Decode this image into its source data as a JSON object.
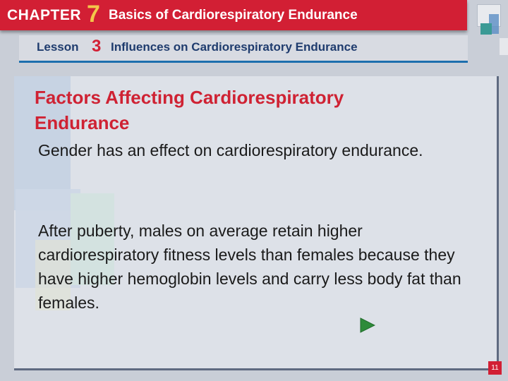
{
  "header": {
    "chapter_label": "CHAPTER",
    "chapter_number": "7",
    "chapter_title": "Basics of Cardiorespiratory Endurance",
    "lesson_label": "Lesson",
    "lesson_number": "3",
    "lesson_title": "Influences on Cardiorespiratory Endurance"
  },
  "slide": {
    "title": "Factors Affecting Cardiorespiratory Endurance",
    "paragraphs": [
      "Gender has an effect on cardiorespiratory endurance.",
      "After puberty, males on average retain higher cardiorespiratory fitness levels than females because they have higher hemoglobin levels and carry less body fat than females."
    ],
    "page_number": "11"
  },
  "colors": {
    "chapter_bar": "#d21f34",
    "chapter_number": "#f3c64a",
    "lesson_text": "#1f3c6e",
    "title_text": "#cf2233",
    "next_arrow": "#2e8b3a"
  },
  "icons": {
    "next": "next-arrow-icon"
  }
}
